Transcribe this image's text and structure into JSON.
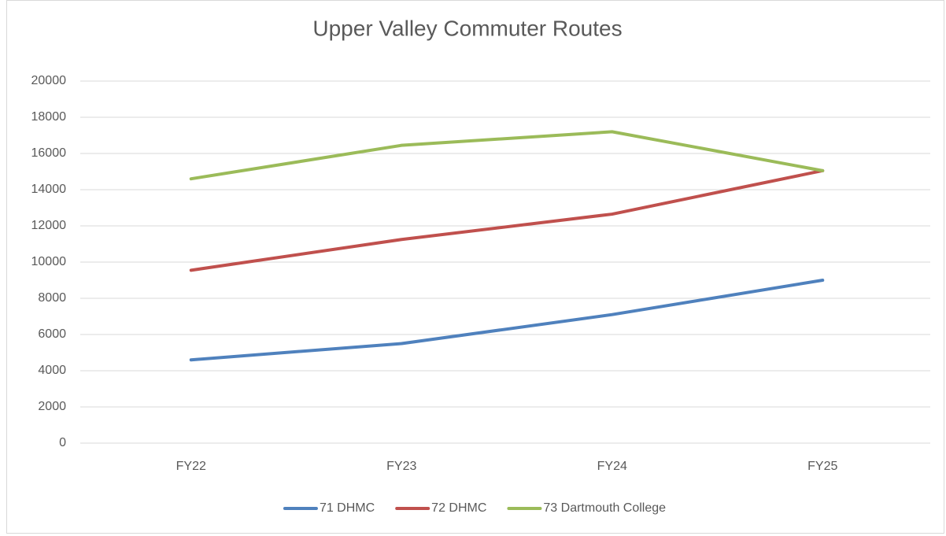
{
  "chart_data": {
    "type": "line",
    "title": "Upper Valley Commuter Routes",
    "categories": [
      "FY22",
      "FY23",
      "FY24",
      "FY25"
    ],
    "series": [
      {
        "name": "71 DHMC",
        "color": "#4f81bd",
        "values": [
          4600,
          5500,
          7100,
          9000
        ]
      },
      {
        "name": "72 DHMC",
        "color": "#c0504d",
        "values": [
          9550,
          11250,
          12650,
          15050
        ]
      },
      {
        "name": "73 Dartmouth College",
        "color": "#9bbb59",
        "values": [
          14600,
          16450,
          17200,
          15050
        ]
      }
    ],
    "ylim": [
      0,
      20000
    ],
    "yticks": [
      0,
      2000,
      4000,
      6000,
      8000,
      10000,
      12000,
      14000,
      16000,
      18000,
      20000
    ],
    "grid": true,
    "legend": "bottom"
  }
}
